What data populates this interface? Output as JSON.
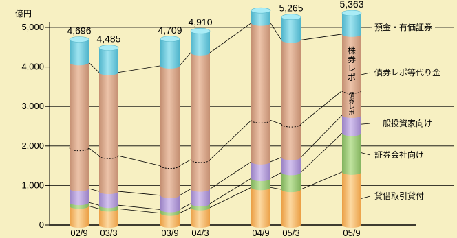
{
  "colors": {
    "background": "#f7f0c2",
    "deposits": "#6cc9dc",
    "main": "#d8a98c",
    "investors": "#b9a0d8",
    "securities": "#9ec77a",
    "lending": "#f5b96a"
  },
  "chart_data": {
    "type": "bar",
    "stacked": true,
    "cylinder_style": true,
    "unit_label": "億円",
    "ylim": [
      0,
      5000
    ],
    "yticks": [
      "0",
      "1,000",
      "2,000",
      "3,000",
      "4,000",
      "5,000"
    ],
    "ytick_values": [
      0,
      1000,
      2000,
      3000,
      4000,
      5000
    ],
    "categories": [
      "02/9",
      "03/3",
      "03/9",
      "04/3",
      "04/9",
      "05/3",
      "05/9"
    ],
    "totals": [
      4696,
      4485,
      4709,
      4910,
      5430,
      5265,
      5363
    ],
    "total_labels": [
      "4,696",
      "4,485",
      "4,709",
      "4,910",
      "",
      "5,265",
      "5,363"
    ],
    "series": [
      {
        "name": "貸借取引貸付",
        "key": "lending",
        "values": [
          480,
          410,
          300,
          440,
          950,
          900,
          1340
        ]
      },
      {
        "name": "証券会社向け",
        "key": "securities",
        "values": [
          90,
          90,
          90,
          100,
          230,
          430,
          980
        ]
      },
      {
        "name": "一般投資家向け",
        "key": "investors",
        "values": [
          350,
          350,
          360,
          370,
          420,
          380,
          460
        ]
      },
      {
        "name": "債券レポ等代り金",
        "key": "main",
        "values": [
          3190,
          3010,
          3280,
          3450,
          3510,
          2970,
          2050
        ]
      },
      {
        "name": "預金・有価証券",
        "key": "deposits",
        "values": [
          586,
          625,
          679,
          550,
          320,
          585,
          533
        ]
      }
    ],
    "dashed_levels": [
      1950,
      1750,
      1500,
      1650,
      2650,
      2550,
      3400
    ],
    "legend_labels": [
      "預金・有価証券",
      "債券レポ等代り金",
      "一般投資家向け",
      "証券会社向け",
      "貸借取引貸付"
    ],
    "inner_labels": {
      "stock_repo": [
        "株",
        "券",
        "レ",
        "ポ"
      ],
      "bond_repo": [
        "債",
        "券",
        "レ",
        "ポ"
      ]
    }
  }
}
